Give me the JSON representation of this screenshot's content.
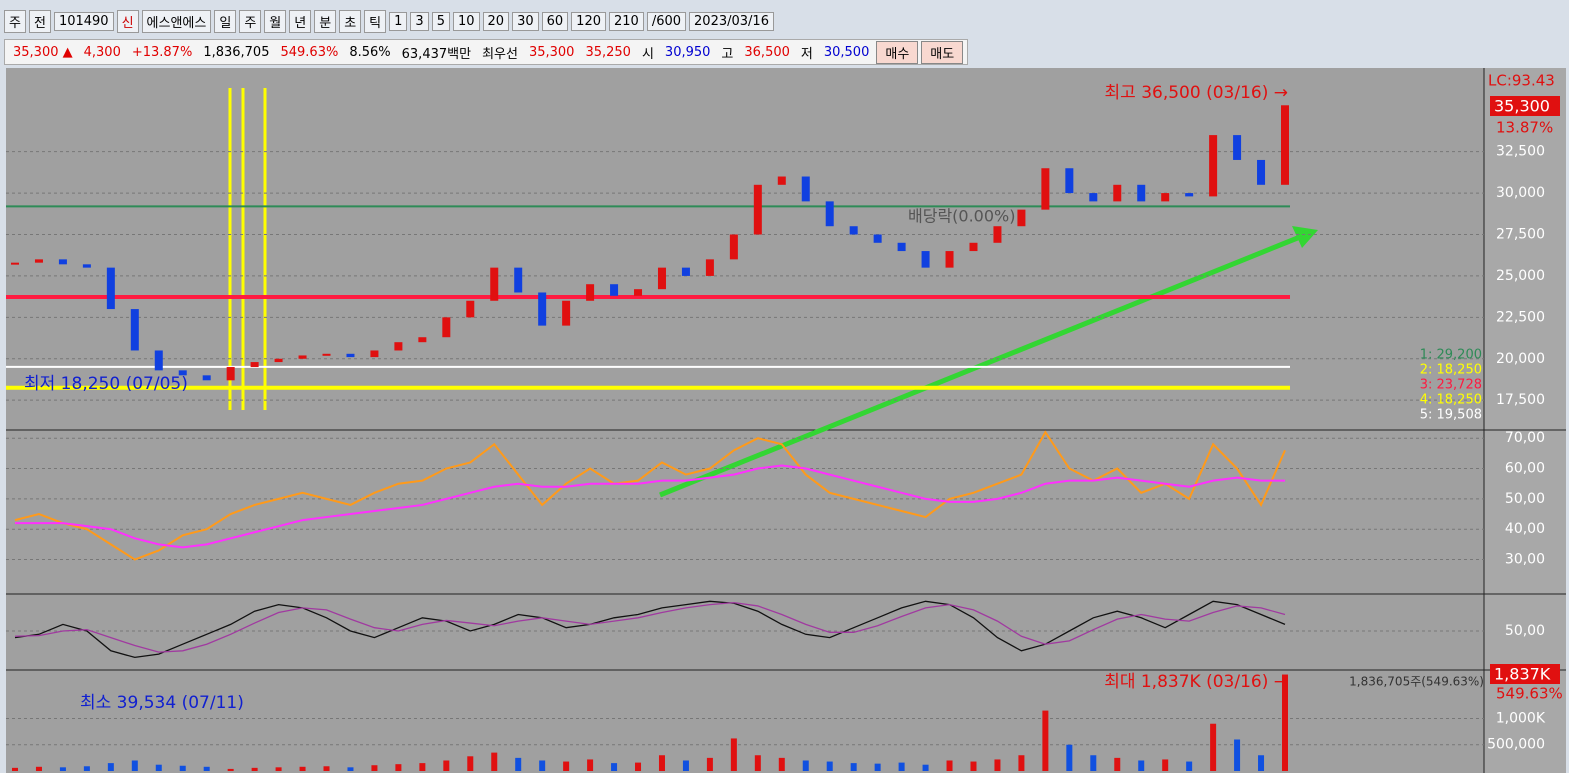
{
  "toolbar": {
    "items": [
      "주",
      "전",
      "101490",
      "신",
      "에스앤에스",
      "일",
      "주",
      "월",
      "년",
      "분",
      "초",
      "틱",
      "1",
      "3",
      "5",
      "10",
      "20",
      "30",
      "60",
      "120",
      "210",
      "/600",
      "2023/03/16"
    ]
  },
  "quote": {
    "items": [
      {
        "text": "35,300 ▲",
        "color": "#e00000"
      },
      {
        "text": "4,300",
        "color": "#e00000"
      },
      {
        "text": "+13.87%",
        "color": "#e00000"
      },
      {
        "text": "1,836,705",
        "color": "#000000"
      },
      {
        "text": "549.63%",
        "color": "#e00000"
      },
      {
        "text": "8.56%",
        "color": "#000000"
      },
      {
        "text": "63,437백만",
        "color": "#000000"
      },
      {
        "text": "최우선",
        "color": "#000000"
      },
      {
        "text": "35,300",
        "color": "#e00000"
      },
      {
        "text": "35,250",
        "color": "#e00000"
      },
      {
        "text": "시",
        "color": "#000000"
      },
      {
        "text": "30,950",
        "color": "#0000d0"
      },
      {
        "text": "고",
        "color": "#000000"
      },
      {
        "text": "36,500",
        "color": "#e00000"
      },
      {
        "text": "저",
        "color": "#000000"
      },
      {
        "text": "30,500",
        "color": "#0000d0"
      }
    ],
    "buttons": [
      "매수",
      "매도"
    ]
  },
  "chart_data": [
    {
      "type": "candlestick",
      "ylim": [
        15700,
        37550
      ],
      "yticks": [
        {
          "value": 17500,
          "label": "17,500"
        },
        {
          "value": 20000,
          "label": "20,000"
        },
        {
          "value": 22500,
          "label": "22,500"
        },
        {
          "value": 25000,
          "label": "25,000"
        },
        {
          "value": 27500,
          "label": "27,500"
        },
        {
          "value": 30000,
          "label": "30,000"
        },
        {
          "value": 32500,
          "label": "32,500"
        }
      ],
      "annotations": [
        "최고 36,500 (03/16) →",
        "최저 18,250 (07/05)",
        "배당락(0.00%)"
      ],
      "right_labels": [
        "LC:93.43",
        "35,300",
        "13.87%"
      ],
      "levels": [
        {
          "label": "1: 29,200",
          "value": 29200,
          "color": "#2e8b57"
        },
        {
          "label": "2: 18,250",
          "value": 18250,
          "color": "#ffff00"
        },
        {
          "label": "3: 23,728",
          "value": 23728,
          "color": "#ff1a40"
        },
        {
          "label": "4: 18,250",
          "value": 18250,
          "color": "#ffff00"
        },
        {
          "label": "5: 19,508",
          "value": 19508,
          "color": "#ffffff"
        }
      ],
      "values": [
        25800,
        26000,
        25700,
        25500,
        23000,
        20500,
        19300,
        19000,
        18700,
        19500,
        19800,
        20000,
        20200,
        20300,
        20100,
        20500,
        21000,
        21300,
        22500,
        23500,
        25500,
        24000,
        22000,
        23500,
        24500,
        23800,
        24200,
        25500,
        25000,
        26000,
        27500,
        30500,
        31000,
        29500,
        28000,
        27500,
        27000,
        26500,
        25500,
        26500,
        27000,
        28000,
        29000,
        31500,
        30000,
        29500,
        30500,
        29500,
        30000,
        29800,
        33500,
        32000,
        30500,
        35300
      ]
    },
    {
      "type": "line",
      "ylim": [
        19.3,
        72.7
      ],
      "yticks": [
        {
          "value": 30,
          "label": "30,00"
        },
        {
          "value": 40,
          "label": "40,00"
        },
        {
          "value": 50,
          "label": "50,00"
        },
        {
          "value": 60,
          "label": "60,00"
        },
        {
          "value": 70,
          "label": "70,00"
        }
      ],
      "series": [
        {
          "color": "#ff9a1a",
          "values": [
            43,
            45,
            42,
            40,
            35,
            30,
            33,
            38,
            40,
            45,
            48,
            50,
            52,
            50,
            48,
            52,
            55,
            56,
            60,
            62,
            68,
            58,
            48,
            55,
            60,
            55,
            56,
            62,
            58,
            60,
            66,
            70,
            68,
            58,
            52,
            50,
            48,
            46,
            44,
            50,
            52,
            55,
            58,
            72,
            60,
            56,
            60,
            52,
            55,
            50,
            68,
            60,
            48,
            66
          ]
        },
        {
          "color": "#ff30ff",
          "values": [
            42,
            42,
            42,
            41,
            40,
            37,
            35,
            34,
            35,
            37,
            39,
            41,
            43,
            44,
            45,
            46,
            47,
            48,
            50,
            52,
            54,
            55,
            54,
            54,
            55,
            55,
            55,
            56,
            56,
            57,
            58,
            60,
            61,
            60,
            58,
            56,
            54,
            52,
            50,
            49,
            49,
            50,
            52,
            55,
            56,
            56,
            57,
            56,
            55,
            54,
            56,
            57,
            56,
            56
          ]
        }
      ]
    },
    {
      "type": "line",
      "ylim": [
        0,
        100
      ],
      "yticks": [
        {
          "value": 50,
          "label": "50,00"
        }
      ],
      "series": [
        {
          "color": "#111111",
          "values": [
            40,
            45,
            60,
            50,
            20,
            10,
            15,
            30,
            45,
            60,
            80,
            90,
            85,
            70,
            50,
            40,
            55,
            70,
            65,
            50,
            60,
            75,
            70,
            55,
            60,
            70,
            75,
            85,
            90,
            95,
            92,
            80,
            60,
            45,
            40,
            55,
            70,
            85,
            95,
            90,
            70,
            40,
            20,
            30,
            50,
            70,
            80,
            70,
            55,
            75,
            95,
            90,
            75,
            60
          ]
        },
        {
          "color": "#a03aa0",
          "values": [
            42,
            43,
            50,
            52,
            40,
            28,
            18,
            20,
            30,
            45,
            62,
            78,
            85,
            82,
            68,
            55,
            50,
            60,
            66,
            62,
            58,
            65,
            70,
            65,
            60,
            65,
            70,
            78,
            85,
            90,
            93,
            88,
            75,
            60,
            48,
            48,
            58,
            72,
            85,
            90,
            82,
            65,
            42,
            30,
            35,
            52,
            68,
            75,
            68,
            65,
            78,
            88,
            85,
            75
          ]
        }
      ]
    },
    {
      "type": "bar",
      "ylim": [
        0,
        1885000
      ],
      "yticks": [
        {
          "value": 500000,
          "label": "500,000"
        },
        {
          "value": 1000000,
          "label": "1,000K"
        }
      ],
      "annotations": [
        "최소 39,534 (07/11)",
        "최대 1,837K (03/16) →",
        "1,836,705주(549.63%)"
      ],
      "right_labels": [
        "1,837K",
        "549.63%"
      ],
      "values": [
        60000,
        80000,
        70000,
        90000,
        150000,
        200000,
        120000,
        100000,
        80000,
        39534,
        60000,
        70000,
        80000,
        90000,
        70000,
        110000,
        130000,
        150000,
        200000,
        280000,
        350000,
        250000,
        200000,
        180000,
        220000,
        150000,
        160000,
        300000,
        200000,
        250000,
        620000,
        300000,
        250000,
        200000,
        180000,
        150000,
        140000,
        160000,
        120000,
        200000,
        180000,
        220000,
        300000,
        1150000,
        500000,
        300000,
        250000,
        200000,
        220000,
        180000,
        900000,
        600000,
        300000,
        1836705
      ]
    }
  ]
}
